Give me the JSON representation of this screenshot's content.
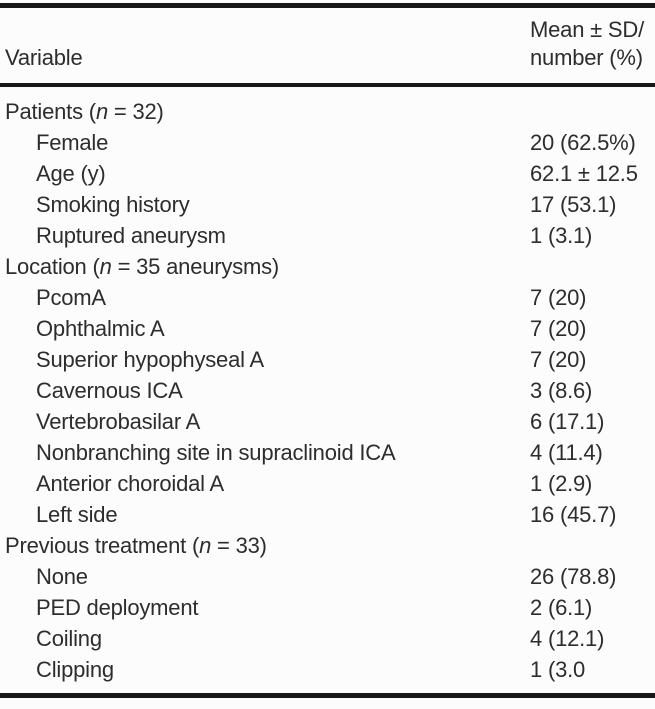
{
  "colors": {
    "text": "#2d2d2d",
    "rule": "#181818",
    "background": "#fcfcfc"
  },
  "table": {
    "header": {
      "variable_label": "Variable",
      "value_label_line1": "Mean ± SD/",
      "value_label_line2": "number (%)"
    },
    "rows": [
      {
        "type": "group",
        "prefix": "Patients (",
        "n": "n",
        "suffix": " = 32)",
        "value": ""
      },
      {
        "type": "item",
        "label": "Female",
        "value": "20 (62.5%)"
      },
      {
        "type": "item",
        "label": "Age (y)",
        "value": "62.1 ± 12.5"
      },
      {
        "type": "item",
        "label": "Smoking history",
        "value": "17 (53.1)"
      },
      {
        "type": "item",
        "label": "Ruptured aneurysm",
        "value": "1 (3.1)"
      },
      {
        "type": "group",
        "prefix": "Location (",
        "n": "n",
        "suffix": " = 35 aneurysms)",
        "value": ""
      },
      {
        "type": "item",
        "label": "PcomA",
        "value": "7 (20)"
      },
      {
        "type": "item",
        "label": "Ophthalmic A",
        "value": "7 (20)"
      },
      {
        "type": "item",
        "label": "Superior hypophyseal A",
        "value": "7 (20)"
      },
      {
        "type": "item",
        "label": "Cavernous ICA",
        "value": "3 (8.6)"
      },
      {
        "type": "item",
        "label": "Vertebrobasilar A",
        "value": "6 (17.1)"
      },
      {
        "type": "item",
        "label": "Nonbranching site in supraclinoid ICA",
        "value": "4 (11.4)"
      },
      {
        "type": "item",
        "label": "Anterior choroidal A",
        "value": "1 (2.9)"
      },
      {
        "type": "item",
        "label": "Left side",
        "value": "16 (45.7)"
      },
      {
        "type": "group",
        "prefix": "Previous treatment (",
        "n": "n",
        "suffix": " = 33)",
        "value": ""
      },
      {
        "type": "item",
        "label": "None",
        "value": "26 (78.8)"
      },
      {
        "type": "item",
        "label": "PED deployment",
        "value": "2 (6.1)"
      },
      {
        "type": "item",
        "label": "Coiling",
        "value": "4 (12.1)"
      },
      {
        "type": "item",
        "label": "Clipping",
        "value": "1 (3.0"
      }
    ]
  }
}
